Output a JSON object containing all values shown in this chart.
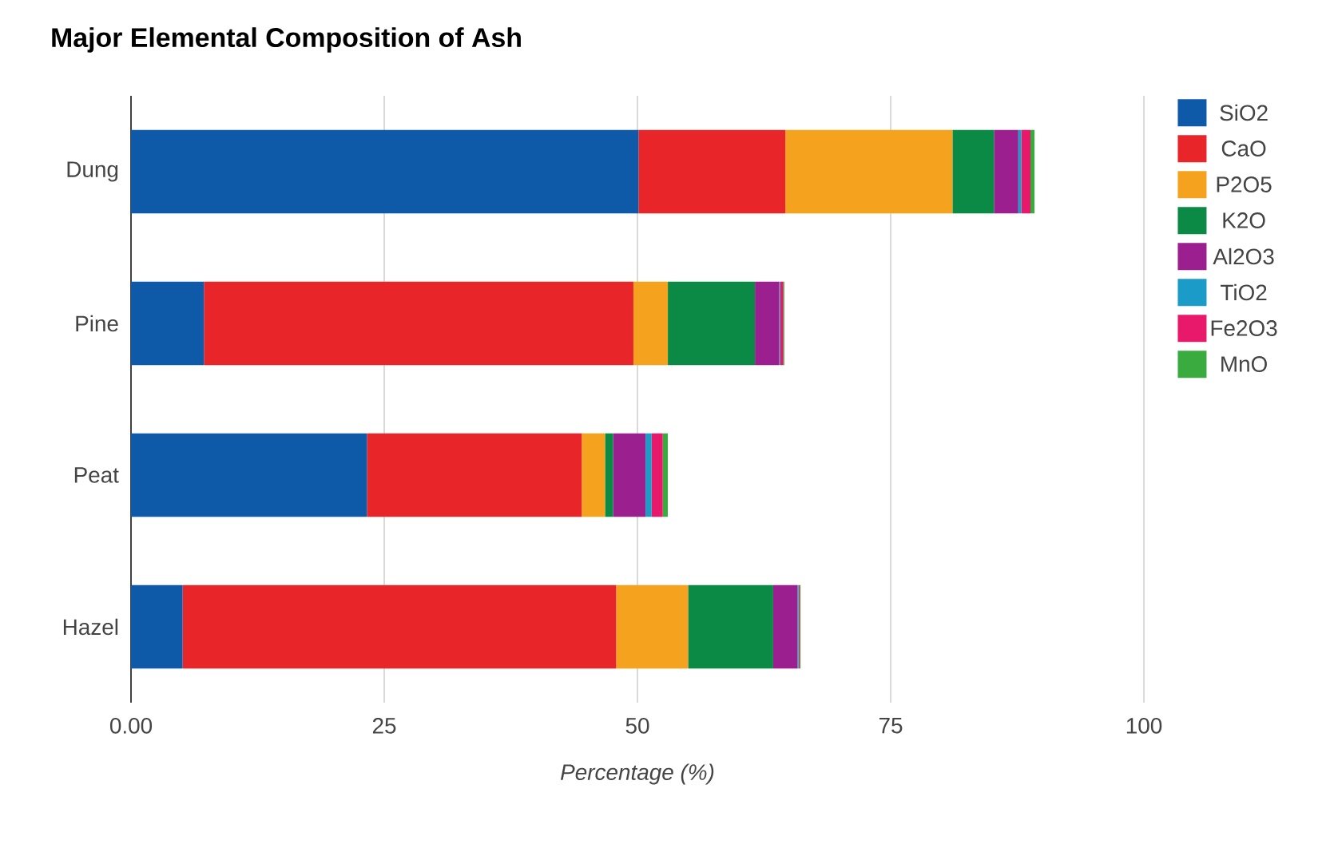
{
  "chart_data": {
    "type": "bar",
    "orientation": "horizontal",
    "stacked": true,
    "title": "Major Elemental Composition of Ash",
    "xlabel": "Percentage (%)",
    "categories": [
      "Dung",
      "Pine",
      "Peat",
      "Hazel"
    ],
    "series": [
      {
        "name": "SiO2",
        "color": "#0f5aa8",
        "values": [
          50.1,
          7.2,
          23.3,
          5.1
        ]
      },
      {
        "name": "CaO",
        "color": "#e8262a",
        "values": [
          14.5,
          42.4,
          21.2,
          42.8
        ]
      },
      {
        "name": "P2O5",
        "color": "#f5a31f",
        "values": [
          16.5,
          3.4,
          2.3,
          7.1
        ]
      },
      {
        "name": "K2O",
        "color": "#0b8a45",
        "values": [
          4.1,
          8.6,
          0.8,
          8.4
        ]
      },
      {
        "name": "Al2O3",
        "color": "#9b1f8e",
        "values": [
          2.4,
          2.4,
          3.2,
          2.4
        ]
      },
      {
        "name": "TiO2",
        "color": "#1a9bc8",
        "values": [
          0.3,
          0.1,
          0.6,
          0.1
        ]
      },
      {
        "name": "Fe2O3",
        "color": "#e8196b",
        "values": [
          0.9,
          0.3,
          1.1,
          0.1
        ]
      },
      {
        "name": "MnO",
        "color": "#3aab3f",
        "values": [
          0.4,
          0.1,
          0.5,
          0.1
        ]
      }
    ],
    "xlim": [
      0,
      100
    ],
    "xticks": [
      {
        "value": 0,
        "label": "0.00"
      },
      25,
      50,
      75,
      100
    ],
    "grid": "x",
    "legend": "right"
  }
}
